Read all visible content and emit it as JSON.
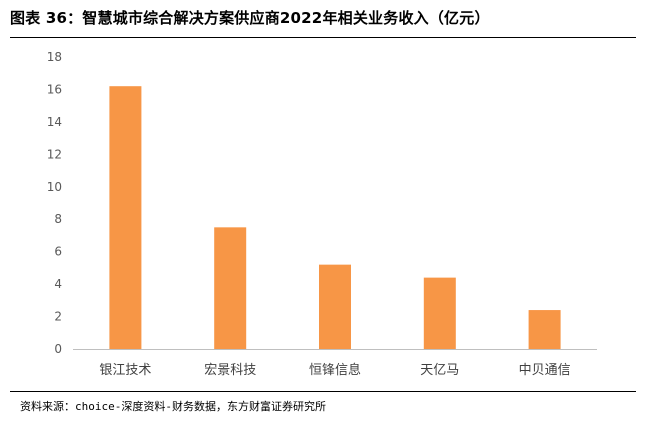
{
  "header": {
    "title": "图表 36：智慧城市综合解决方案供应商2022年相关业务收入（亿元）"
  },
  "footer": {
    "source": "资料来源：choice-深度资料-财务数据，东方财富证券研究所"
  },
  "chart_data": {
    "type": "bar",
    "categories": [
      "银江技术",
      "宏景科技",
      "恒锋信息",
      "天亿马",
      "中贝通信"
    ],
    "values": [
      16.2,
      7.5,
      5.2,
      4.4,
      2.4
    ],
    "yticks": [
      "0",
      "2",
      "4",
      "6",
      "8",
      "10",
      "12",
      "14",
      "16",
      "18"
    ],
    "ylim": [
      0,
      18
    ],
    "grid": false,
    "legend": "none",
    "bar_color": "#F79646",
    "axis_color": "#BFBFBF"
  }
}
